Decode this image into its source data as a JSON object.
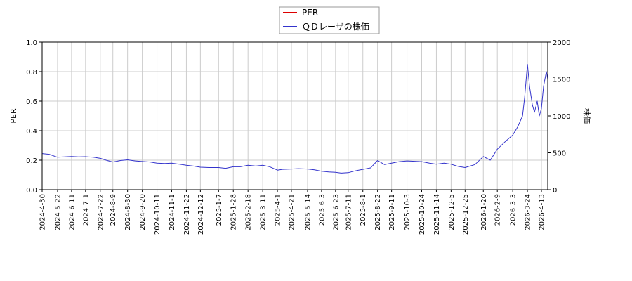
{
  "chart_data": {
    "type": "line",
    "legend": {
      "placement": "top-center",
      "entries": [
        {
          "label": "PER",
          "color": "#dd0000"
        },
        {
          "label": "ＱＤレーザの株価",
          "color": "#3333cc"
        }
      ]
    },
    "left_axis": {
      "label": "PER",
      "ylim": [
        0,
        1.0
      ],
      "ticks": [
        "0.0",
        "0.2",
        "0.4",
        "0.6",
        "0.8",
        "1.0"
      ]
    },
    "right_axis": {
      "label": "株価",
      "ylim": [
        0,
        2000
      ],
      "ticks": [
        "0",
        "500",
        "1000",
        "1500",
        "2000"
      ]
    },
    "x_tick_labels": [
      "2024-4-30",
      "2024-5-22",
      "2024-6-11",
      "2024-7-1",
      "2024-7-22",
      "2024-8-9",
      "2024-8-30",
      "2024-9-20",
      "2024-10-11",
      "2024-11-1",
      "2024-11-22",
      "2024-12-12",
      "2025-1-7",
      "2025-1-28",
      "2025-2-18",
      "2025-3-11",
      "2025-4-1",
      "2025-4-21",
      "2025-5-14",
      "2025-6-3",
      "2025-6-23",
      "2025-7-11",
      "2025-8-1",
      "2025-8-22",
      "2025-9-11",
      "2025-10-3",
      "2025-10-24",
      "2025-11-14",
      "2025-12-5",
      "2025-12-25",
      "2026-1-20",
      "2026-2-9",
      "2026-3-3",
      "2026-3-24",
      "2026-4-13"
    ],
    "grid": true,
    "series": [
      {
        "name": "ＱＤレーザの株価",
        "axis": "right",
        "color": "#3333cc",
        "x": [
          "2024-4-30",
          "2024-5-10",
          "2024-5-22",
          "2024-6-1",
          "2024-6-11",
          "2024-6-21",
          "2024-7-1",
          "2024-7-12",
          "2024-7-22",
          "2024-8-1",
          "2024-8-9",
          "2024-8-20",
          "2024-8-30",
          "2024-9-10",
          "2024-9-20",
          "2024-10-1",
          "2024-10-11",
          "2024-10-22",
          "2024-11-1",
          "2024-11-12",
          "2024-11-22",
          "2024-12-2",
          "2024-12-12",
          "2024-12-24",
          "2025-1-7",
          "2025-1-17",
          "2025-1-28",
          "2025-2-7",
          "2025-2-18",
          "2025-3-1",
          "2025-3-11",
          "2025-3-21",
          "2025-4-1",
          "2025-4-8",
          "2025-4-21",
          "2025-5-1",
          "2025-5-14",
          "2025-5-24",
          "2025-6-3",
          "2025-6-13",
          "2025-6-23",
          "2025-7-1",
          "2025-7-11",
          "2025-7-21",
          "2025-8-1",
          "2025-8-12",
          "2025-8-22",
          "2025-9-1",
          "2025-9-11",
          "2025-9-22",
          "2025-10-3",
          "2025-10-14",
          "2025-10-24",
          "2025-11-4",
          "2025-11-14",
          "2025-11-25",
          "2025-12-5",
          "2025-12-15",
          "2025-12-25",
          "2026-1-8",
          "2026-1-20",
          "2026-1-30",
          "2026-2-9",
          "2026-2-20",
          "2026-3-3",
          "2026-3-10",
          "2026-3-17",
          "2026-3-20",
          "2026-3-24",
          "2026-3-27",
          "2026-3-31",
          "2026-4-3",
          "2026-4-7",
          "2026-4-10",
          "2026-4-13",
          "2026-4-16",
          "2026-4-20",
          "2026-4-22"
        ],
        "values": [
          490,
          480,
          440,
          445,
          450,
          445,
          448,
          440,
          425,
          395,
          375,
          395,
          405,
          390,
          382,
          375,
          360,
          355,
          360,
          345,
          330,
          320,
          305,
          300,
          300,
          290,
          310,
          310,
          330,
          320,
          330,
          310,
          265,
          275,
          280,
          285,
          280,
          270,
          250,
          240,
          235,
          225,
          230,
          255,
          275,
          295,
          395,
          340,
          360,
          380,
          390,
          385,
          380,
          360,
          345,
          360,
          345,
          315,
          300,
          340,
          450,
          400,
          550,
          650,
          740,
          850,
          1000,
          1250,
          1700,
          1400,
          1150,
          1050,
          1200,
          1000,
          1100,
          1400,
          1600,
          1500
        ]
      },
      {
        "name": "PER",
        "axis": "left",
        "color": "#dd0000",
        "x": [],
        "values": []
      }
    ]
  }
}
